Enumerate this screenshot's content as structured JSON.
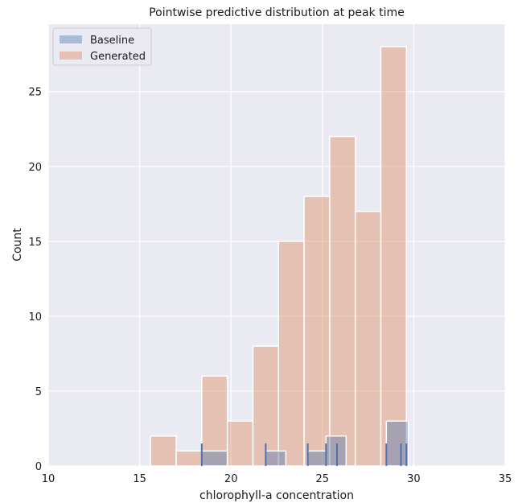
{
  "chart_data": {
    "type": "bar",
    "title": "Pointwise predictive distribution at peak time",
    "xlabel": "chlorophyll-a concentration",
    "ylabel": "Count",
    "xlim": [
      10,
      35
    ],
    "ylim": [
      0,
      29.5
    ],
    "xticks": [
      10,
      15,
      20,
      25,
      30,
      35
    ],
    "yticks": [
      0,
      5,
      10,
      15,
      20,
      25
    ],
    "grid": true,
    "legend_position": "top-left",
    "colors": {
      "background": "#EAEAF2",
      "grid": "#FFFFFF",
      "baseline": "#4C72B0",
      "generated": "#DD8452"
    },
    "series": [
      {
        "name": "Baseline",
        "bins": [
          {
            "x0": 18.4,
            "x1": 19.8,
            "count": 1
          },
          {
            "x0": 21.9,
            "x1": 23.0,
            "count": 1
          },
          {
            "x0": 24.2,
            "x1": 25.2,
            "count": 1
          },
          {
            "x0": 25.2,
            "x1": 26.3,
            "count": 2
          },
          {
            "x0": 28.5,
            "x1": 29.7,
            "count": 3
          }
        ],
        "rug": [
          18.4,
          21.9,
          24.2,
          25.2,
          25.8,
          28.5,
          29.3,
          29.6
        ]
      },
      {
        "name": "Generated",
        "bins": [
          {
            "x0": 15.6,
            "x1": 17.0,
            "count": 2
          },
          {
            "x0": 17.0,
            "x1": 18.4,
            "count": 1
          },
          {
            "x0": 18.4,
            "x1": 19.8,
            "count": 6
          },
          {
            "x0": 19.8,
            "x1": 21.2,
            "count": 3
          },
          {
            "x0": 21.2,
            "x1": 22.6,
            "count": 8
          },
          {
            "x0": 22.6,
            "x1": 24.0,
            "count": 15
          },
          {
            "x0": 24.0,
            "x1": 25.4,
            "count": 18
          },
          {
            "x0": 25.4,
            "x1": 26.8,
            "count": 22
          },
          {
            "x0": 26.8,
            "x1": 28.2,
            "count": 17
          },
          {
            "x0": 28.2,
            "x1": 29.6,
            "count": 28
          }
        ]
      }
    ]
  }
}
